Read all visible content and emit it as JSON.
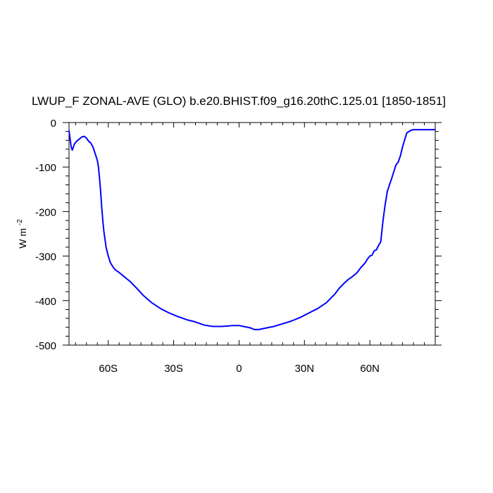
{
  "chart_data": {
    "type": "line",
    "title": "LWUP_F ZONAL-AVE (GLO) b.e20.BHIST.f09_g16.20thC.125.01 [1850-1851]",
    "ylabel_main": "W m",
    "ylabel_sup": "-2",
    "xlim": [
      -78,
      90
    ],
    "ylim": [
      -500,
      0
    ],
    "grid": false,
    "x_ticks": [
      {
        "value": -60,
        "label": "60S"
      },
      {
        "value": -30,
        "label": "30S"
      },
      {
        "value": 0,
        "label": "0"
      },
      {
        "value": 30,
        "label": "30N"
      },
      {
        "value": 60,
        "label": "60N"
      }
    ],
    "y_ticks": [
      {
        "value": 0,
        "label": "0"
      },
      {
        "value": -100,
        "label": "-100"
      },
      {
        "value": -200,
        "label": "-200"
      },
      {
        "value": -300,
        "label": "-300"
      },
      {
        "value": -400,
        "label": "-400"
      },
      {
        "value": -500,
        "label": "-500"
      }
    ],
    "series": [
      {
        "color": "#0000ff",
        "x": [
          -78,
          -77,
          -76.5,
          -75.5,
          -74.5,
          -73,
          -72,
          -71,
          -70,
          -69,
          -68,
          -67,
          -66,
          -65,
          -64.5,
          -64,
          -63.5,
          -63,
          -62.5,
          -62,
          -61.5,
          -61,
          -60,
          -59,
          -58,
          -57,
          -55,
          -53,
          -50,
          -47,
          -44,
          -40,
          -36,
          -32,
          -28,
          -24,
          -20,
          -16,
          -12,
          -8,
          -5,
          -3,
          0,
          2,
          5,
          7,
          9,
          12,
          16,
          20,
          24,
          28,
          32,
          36,
          40,
          42,
          44,
          46,
          48,
          50,
          52,
          54,
          56,
          57,
          58,
          59,
          60,
          61,
          62,
          63,
          64,
          65,
          66,
          67,
          68,
          69,
          70,
          71,
          72,
          73,
          74,
          75,
          76,
          77,
          78,
          79,
          80,
          82,
          84,
          86,
          88,
          90
        ],
        "y": [
          -18,
          -55,
          -62,
          -48,
          -42,
          -36,
          -32,
          -31,
          -35,
          -42,
          -46,
          -55,
          -70,
          -85,
          -100,
          -125,
          -155,
          -190,
          -220,
          -245,
          -262,
          -280,
          -300,
          -315,
          -323,
          -330,
          -337,
          -345,
          -357,
          -372,
          -388,
          -405,
          -418,
          -428,
          -436,
          -443,
          -448,
          -455,
          -458,
          -458,
          -457,
          -456,
          -456,
          -458,
          -461,
          -465,
          -465,
          -462,
          -458,
          -452,
          -446,
          -438,
          -428,
          -418,
          -405,
          -395,
          -385,
          -372,
          -362,
          -353,
          -346,
          -338,
          -325,
          -320,
          -314,
          -306,
          -300,
          -298,
          -288,
          -286,
          -276,
          -268,
          -222,
          -185,
          -155,
          -140,
          -126,
          -110,
          -95,
          -89,
          -75,
          -55,
          -38,
          -23,
          -20,
          -17,
          -16,
          -16,
          -16,
          -16,
          -16,
          -16
        ]
      }
    ]
  }
}
